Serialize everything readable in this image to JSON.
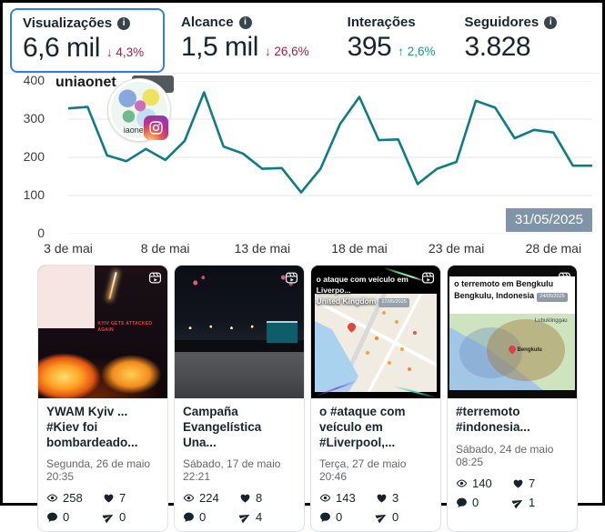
{
  "header": {
    "stats": [
      {
        "label": "Visualizações",
        "value": "6,6 mil",
        "delta": "4,3%",
        "delta_arrow": "↓",
        "delta_dir": "down",
        "selected": true,
        "has_info": true
      },
      {
        "label": "Alcance",
        "value": "1,5 mil",
        "delta": "26,6%",
        "delta_arrow": "↓",
        "delta_dir": "down",
        "selected": false,
        "has_info": true
      },
      {
        "label": "Interações",
        "value": "395",
        "delta": "2,6%",
        "delta_arrow": "↑",
        "delta_dir": "up",
        "selected": false,
        "has_info": false
      },
      {
        "label": "Seguidores",
        "value": "3.828",
        "delta": "",
        "delta_arrow": "",
        "delta_dir": "none",
        "selected": false,
        "has_info": true
      }
    ],
    "colors": {
      "selected_border": "#2d7ff0",
      "delta_down": "#a12347",
      "delta_up": "#1d9b81"
    }
  },
  "chart": {
    "account_label": "uniaonet",
    "avatar_caption": "iaonet",
    "date_badge": "31/05/2025",
    "colors": {
      "line": "#0e7c86",
      "badge_bg": "#7f93a9",
      "grid": "#e7e7e7"
    }
  },
  "chart_data": {
    "type": "line",
    "title": "uniaonet — visualizações diárias",
    "x_unit": "dia de maio de 2025",
    "x_range_days": [
      3,
      30
    ],
    "values": [
      328,
      332,
      205,
      190,
      222,
      193,
      243,
      370,
      228,
      210,
      170,
      172,
      108,
      170,
      287,
      358,
      245,
      247,
      130,
      170,
      188,
      348,
      330,
      250,
      272,
      265,
      178,
      178
    ],
    "x_tick_days": [
      3,
      8,
      13,
      18,
      23,
      28
    ],
    "x_tick_labels": [
      "3 de mai",
      "8 de mai",
      "13 de mai",
      "18 de mai",
      "23 de mai",
      "28 de mai"
    ],
    "y_ticks": [
      400,
      300,
      200,
      100,
      0
    ],
    "ylim": [
      0,
      400
    ],
    "grid": true,
    "legend": false,
    "line_color": "#0e7c86"
  },
  "icons": {
    "views": "eye-icon",
    "likes": "heart-icon",
    "comments": "comment-icon",
    "shares": "share-icon",
    "info": "info-icon",
    "reel": "reels-icon",
    "instagram": "instagram-icon"
  },
  "posts": [
    {
      "title": "YWAM Kyiv ... #Kiev foi bombardeado...",
      "datetime": "Segunda, 26 de maio 20:35",
      "views": "258",
      "likes": "7",
      "comments": "0",
      "shares": "0",
      "thumb_caption": "KYIV GETS ATTACKED AGAIN"
    },
    {
      "title": "Campaña Evangelística Una...",
      "datetime": "Sábado, 17 de maio 22:21",
      "views": "224",
      "likes": "8",
      "comments": "0",
      "shares": "4"
    },
    {
      "title": "o #ataque com veículo em #Liverpool,...",
      "datetime": "Terça, 27 de maio 20:46",
      "views": "143",
      "likes": "3",
      "comments": "0",
      "shares": "0",
      "thumb_line1": "o ataque com veículo em Liverpo...",
      "thumb_line2": "United Kingdom",
      "thumb_chip": "27/05/2025"
    },
    {
      "title": "#terremoto #indonesia...",
      "datetime": "Sábado, 24 de maio 08:25",
      "views": "140",
      "likes": "7",
      "comments": "0",
      "shares": "1",
      "thumb_line1": "o terremoto em Bengkulu",
      "thumb_line2": "Bengkulu, Indonesia",
      "thumb_chip": "24/05/2025",
      "map_label": "Lubuklinggau",
      "pin_label": "Bengkulu"
    }
  ]
}
